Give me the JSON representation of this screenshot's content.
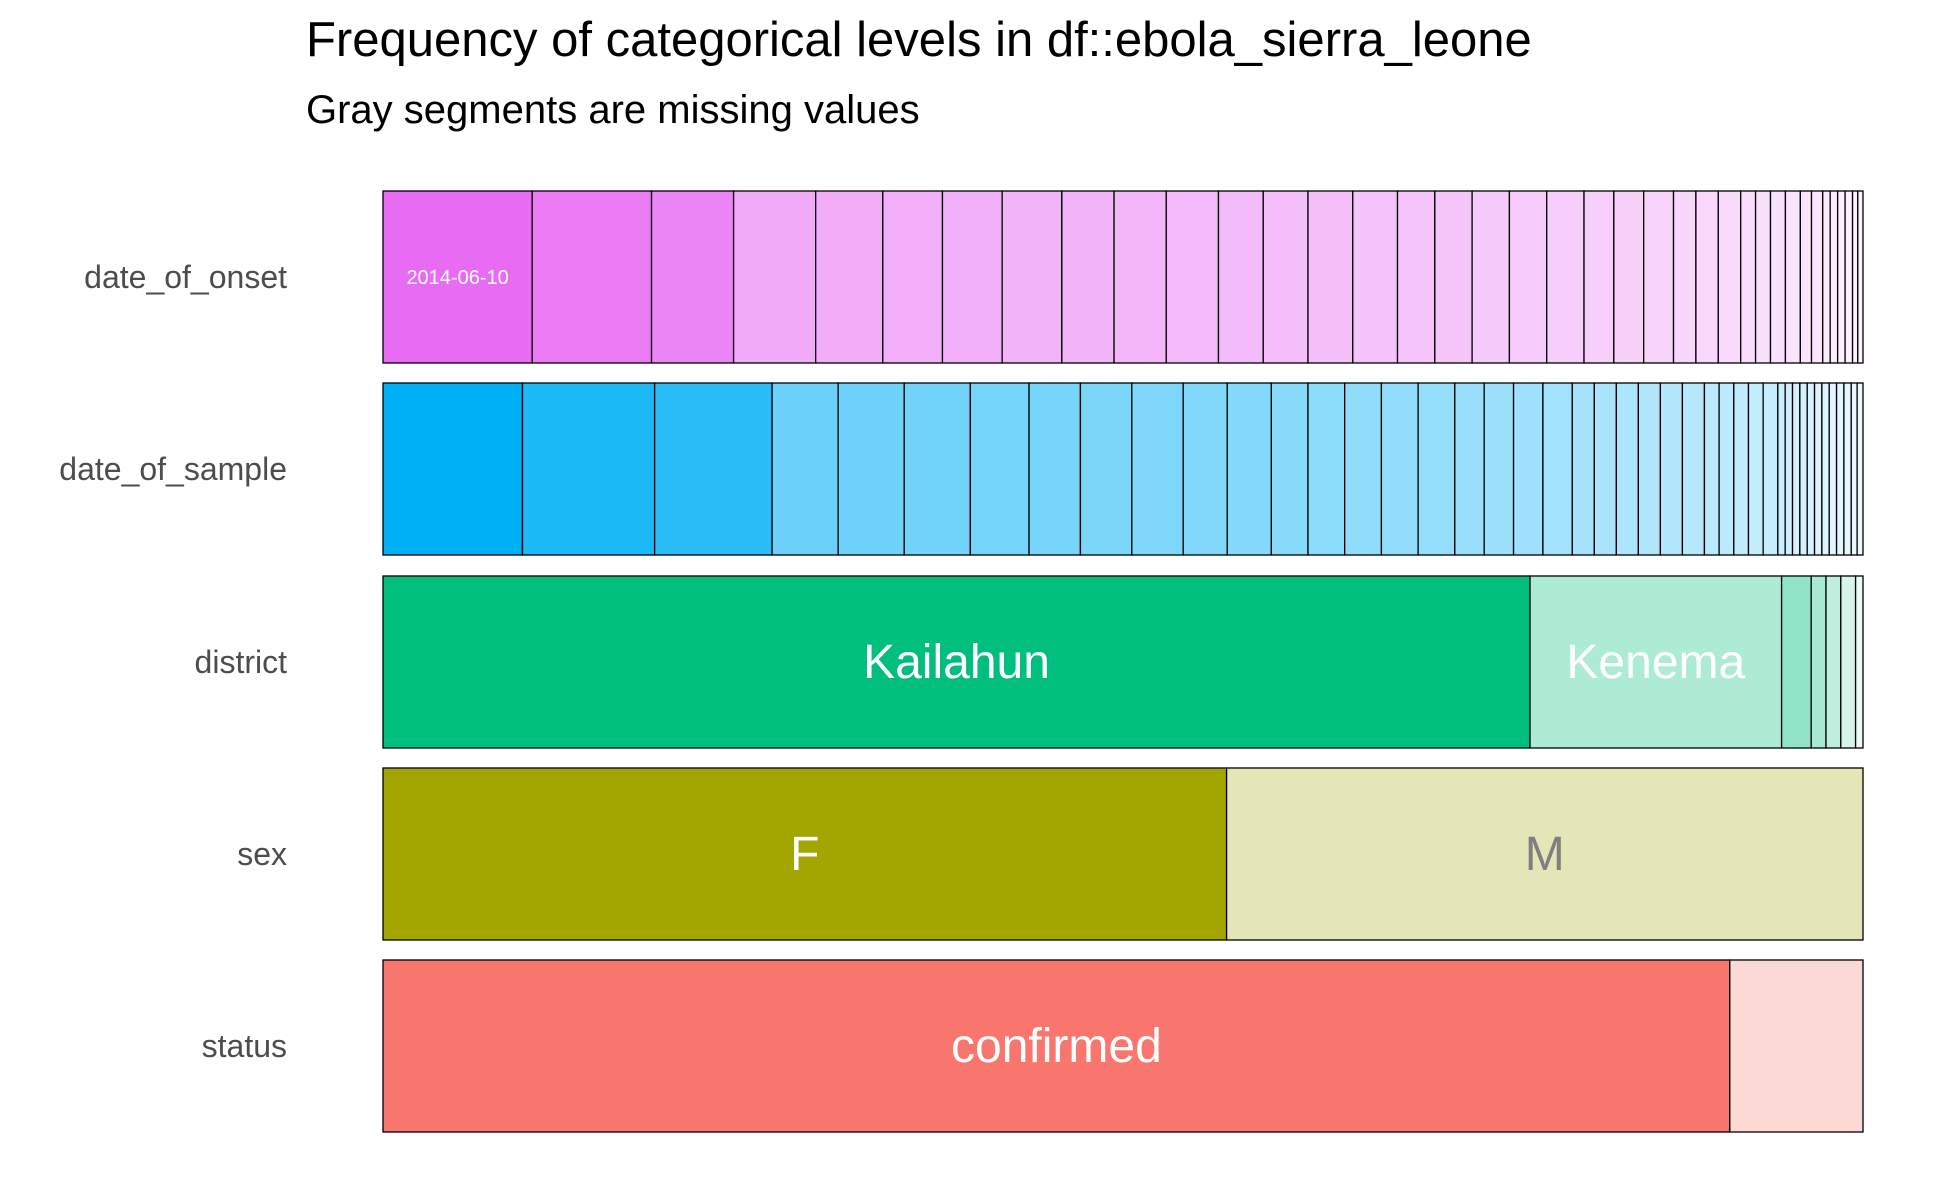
{
  "chart_data": {
    "type": "bar",
    "orientation": "horizontal",
    "stacking": "fill",
    "title": "Frequency of categorical levels in df::ebola_sierra_leone",
    "subtitle": "Gray segments are missing values",
    "xlim": [
      0,
      1
    ],
    "grid": false,
    "legend": "none",
    "categories": [
      "date_of_onset",
      "date_of_sample",
      "district",
      "sex",
      "status"
    ],
    "rows": [
      {
        "variable": "date_of_onset",
        "color": "#E76BF3",
        "values": [
          0.1,
          0.08,
          0.055,
          0.055,
          0.045,
          0.04,
          0.04,
          0.04,
          0.035,
          0.035,
          0.035,
          0.03,
          0.03,
          0.03,
          0.03,
          0.025,
          0.025,
          0.025,
          0.025,
          0.025,
          0.02,
          0.02,
          0.02,
          0.015,
          0.015,
          0.015,
          0.01,
          0.01,
          0.01,
          0.01,
          0.0075,
          0.0075,
          0.005,
          0.005,
          0.005,
          0.005,
          0.0035,
          0.0035
        ],
        "labels": [
          "2014-06-10"
        ]
      },
      {
        "variable": "date_of_sample",
        "color": "#00B0F6",
        "values": [
          0.095,
          0.09,
          0.08,
          0.045,
          0.045,
          0.045,
          0.04,
          0.035,
          0.035,
          0.035,
          0.03,
          0.03,
          0.025,
          0.025,
          0.025,
          0.025,
          0.025,
          0.02,
          0.02,
          0.02,
          0.02,
          0.015,
          0.015,
          0.015,
          0.015,
          0.015,
          0.015,
          0.01,
          0.01,
          0.01,
          0.01,
          0.01,
          0.005,
          0.005,
          0.005,
          0.005,
          0.005,
          0.005,
          0.005,
          0.005,
          0.005,
          0.005,
          0.004,
          0.004
        ],
        "labels": []
      },
      {
        "variable": "district",
        "color": "#00BF7D",
        "values": [
          0.775,
          0.17,
          0.02,
          0.01,
          0.01,
          0.01,
          0.005
        ],
        "labels": [
          "Kailahun",
          "Kenema"
        ]
      },
      {
        "variable": "sex",
        "color": "#A3A500",
        "values": [
          0.57,
          0.43
        ],
        "labels": [
          "F",
          "M"
        ]
      },
      {
        "variable": "status",
        "color": "#F8766D",
        "values": [
          0.91,
          0.09
        ],
        "labels": [
          "confirmed"
        ]
      }
    ]
  }
}
